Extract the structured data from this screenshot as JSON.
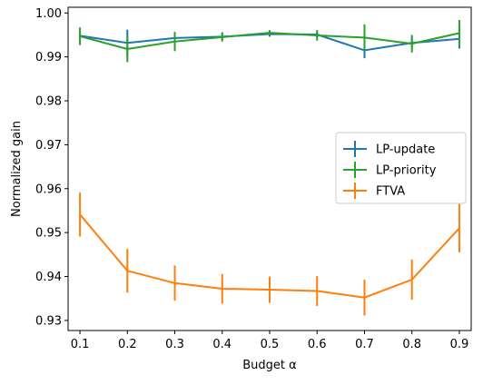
{
  "chart_data": {
    "type": "line",
    "title": "",
    "xlabel": "Budget α",
    "ylabel": "Normalized gain",
    "x": [
      0.1,
      0.2,
      0.3,
      0.4,
      0.5,
      0.6,
      0.7,
      0.8,
      0.9
    ],
    "x_tick_labels": [
      "0.1",
      "0.2",
      "0.3",
      "0.4",
      "0.5",
      "0.6",
      "0.7",
      "0.8",
      "0.9"
    ],
    "y_ticks": [
      0.93,
      0.94,
      0.95,
      0.96,
      0.97,
      0.98,
      0.99,
      1.0
    ],
    "y_tick_labels": [
      "0.93",
      "0.94",
      "0.95",
      "0.96",
      "0.97",
      "0.98",
      "0.99",
      "1.00"
    ],
    "xlim": [
      0.075,
      0.925
    ],
    "ylim": [
      0.9277,
      1.0013
    ],
    "grid": false,
    "legend_position": "center-right",
    "series": [
      {
        "name": "LP-update",
        "color": "#1f77b4",
        "values": [
          0.9948,
          0.9932,
          0.9943,
          0.9946,
          0.9952,
          0.9951,
          0.9915,
          0.9932,
          0.9941
        ],
        "errors": [
          0.0012,
          0.003,
          0.0012,
          0.001,
          0.0006,
          0.0008,
          0.0018,
          0.0012,
          0.0022
        ]
      },
      {
        "name": "LP-priority",
        "color": "#2ca02c",
        "values": [
          0.9947,
          0.9918,
          0.9935,
          0.9945,
          0.9955,
          0.9949,
          0.9944,
          0.993,
          0.9954
        ],
        "errors": [
          0.002,
          0.003,
          0.0022,
          0.001,
          0.0006,
          0.0012,
          0.003,
          0.002,
          0.003
        ]
      },
      {
        "name": "FTVA",
        "color": "#ff7f0e",
        "values": [
          0.9541,
          0.9413,
          0.9385,
          0.9372,
          0.937,
          0.9367,
          0.9352,
          0.9393,
          0.951
        ],
        "errors": [
          0.005,
          0.005,
          0.004,
          0.0034,
          0.003,
          0.0034,
          0.0041,
          0.0046,
          0.0055
        ]
      }
    ]
  }
}
